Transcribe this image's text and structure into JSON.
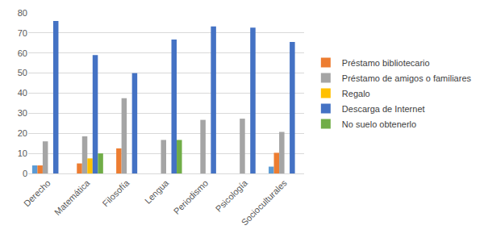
{
  "chart_data": {
    "type": "bar",
    "categories": [
      "Derecho",
      "Matemática",
      "Filosofía",
      "Lengua",
      "Periodismo",
      "Psicología",
      "Socioculturales"
    ],
    "series": [
      {
        "name": null,
        "color": "#5b9bd5",
        "values": [
          4,
          0,
          0,
          0,
          0,
          0,
          3.4
        ]
      },
      {
        "name": "Préstamo bibliotecario",
        "color": "#ed7d31",
        "values": [
          4,
          5,
          12.5,
          0,
          0,
          0,
          10.3
        ]
      },
      {
        "name": "Préstamo de amigos o familiares",
        "color": "#a5a5a5",
        "values": [
          16,
          18.5,
          37.5,
          16.7,
          26.7,
          27.3,
          20.7
        ]
      },
      {
        "name": "Regalo",
        "color": "#ffc000",
        "values": [
          0,
          7.5,
          0,
          0,
          0,
          0,
          0
        ]
      },
      {
        "name": "Descarga de Internet",
        "color": "#4472c4",
        "values": [
          76,
          59,
          50,
          66.7,
          73.3,
          72.7,
          65.5
        ]
      },
      {
        "name": "No suelo obtenerlo",
        "color": "#70ad47",
        "values": [
          0,
          10,
          0,
          16.7,
          0,
          0,
          0
        ]
      }
    ],
    "ylim": [
      0,
      80
    ],
    "yticks": [
      0,
      10,
      20,
      30,
      40,
      50,
      60,
      70,
      80
    ],
    "grid": true,
    "legend": "right"
  }
}
